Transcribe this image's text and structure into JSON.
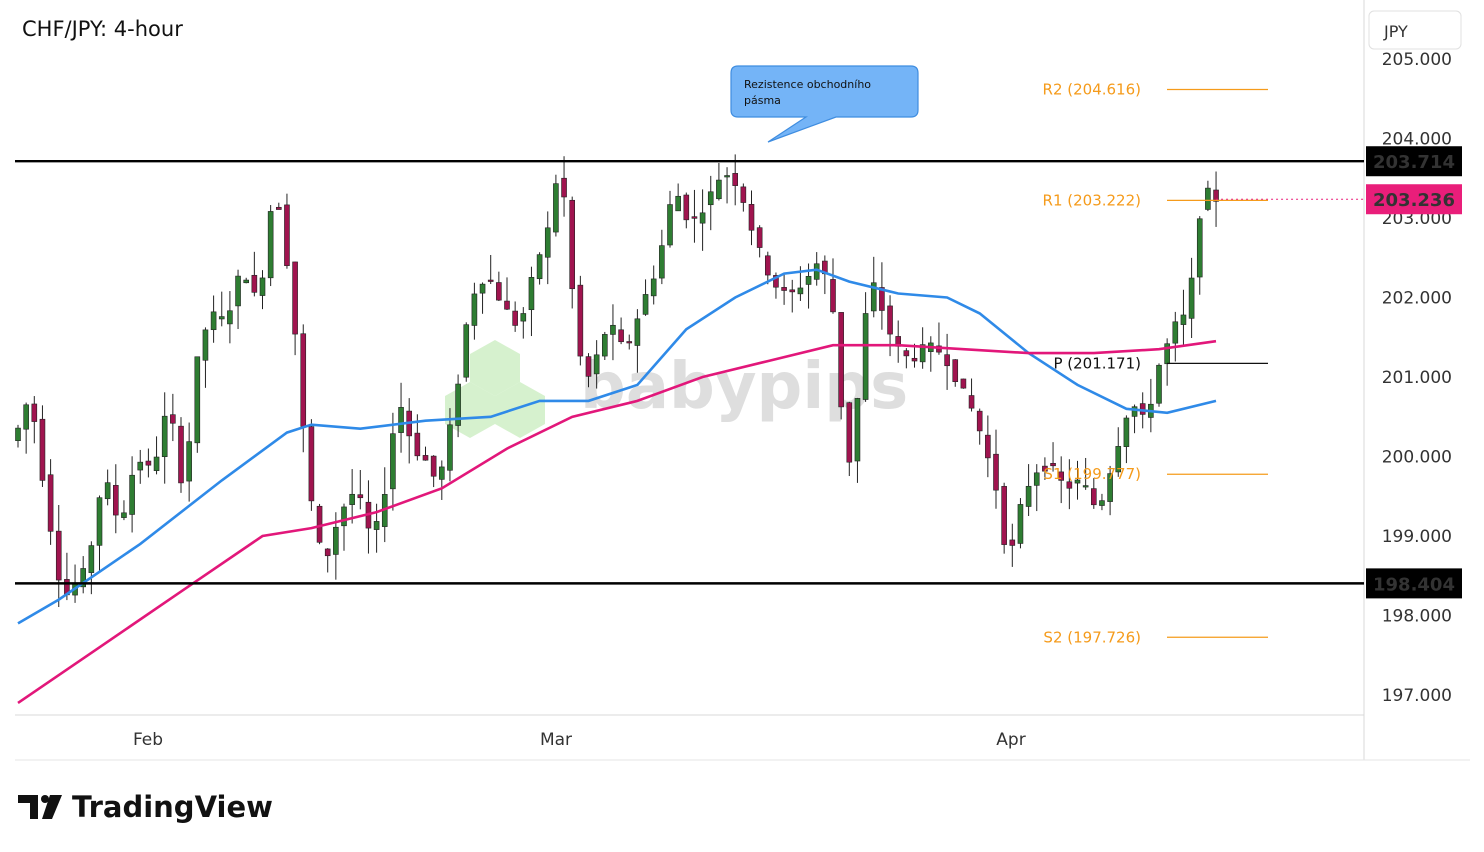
{
  "header": {
    "title": "CHF/JPY: 4-hour",
    "currency": "JPY"
  },
  "branding": {
    "tradingview": "TradingView",
    "watermark": "babypips"
  },
  "chart_data": {
    "type": "candlestick",
    "title": "CHF/JPY: 4-hour",
    "ylim": [
      196.8,
      205.8
    ],
    "y_ticks": [
      "205.000",
      "204.000",
      "203.000",
      "202.000",
      "201.000",
      "200.000",
      "199.000",
      "198.000",
      "197.000"
    ],
    "x_ticks": [
      "Feb",
      "Mar",
      "Apr"
    ],
    "horizontal_lines": [
      {
        "label": "203.714",
        "value": 203.714,
        "color": "#000000"
      },
      {
        "label": "198.404",
        "value": 198.404,
        "color": "#000000"
      }
    ],
    "current_price": {
      "label": "203.236",
      "value": 203.236,
      "color": "#e91e7a"
    },
    "pivot_levels": [
      {
        "label": "R2 (204.616)",
        "value": 204.616,
        "color": "#f59b1b"
      },
      {
        "label": "R1 (203.222)",
        "value": 203.222,
        "color": "#f59b1b"
      },
      {
        "label": "P (201.171)",
        "value": 201.171,
        "color": "#111111"
      },
      {
        "label": "S1 (199.777)",
        "value": 199.777,
        "color": "#f59b1b"
      },
      {
        "label": "S2 (197.726)",
        "value": 197.726,
        "color": "#f59b1b"
      }
    ],
    "annotation": {
      "text_line1": "Rezistence obchodního",
      "text_line2": "pásma"
    },
    "price_path": [
      [
        0,
        200.2
      ],
      [
        2,
        200.8
      ],
      [
        4,
        199.4
      ],
      [
        6,
        198.2
      ],
      [
        9,
        198.6
      ],
      [
        11,
        199.8
      ],
      [
        13,
        199.1
      ],
      [
        15,
        200.0
      ],
      [
        17,
        199.8
      ],
      [
        19,
        200.7
      ],
      [
        21,
        199.4
      ],
      [
        22,
        201.0
      ],
      [
        24,
        201.8
      ],
      [
        26,
        201.7
      ],
      [
        28,
        202.4
      ],
      [
        30,
        201.9
      ],
      [
        32,
        203.5
      ],
      [
        34,
        202.1
      ],
      [
        35,
        201.0
      ],
      [
        36,
        199.7
      ],
      [
        38,
        198.6
      ],
      [
        40,
        199.3
      ],
      [
        42,
        199.6
      ],
      [
        44,
        198.9
      ],
      [
        46,
        199.8
      ],
      [
        47,
        200.8
      ],
      [
        49,
        200.1
      ],
      [
        51,
        199.9
      ],
      [
        52,
        199.6
      ],
      [
        54,
        200.6
      ],
      [
        56,
        202.0
      ],
      [
        58,
        202.3
      ],
      [
        60,
        201.9
      ],
      [
        62,
        201.6
      ],
      [
        64,
        202.4
      ],
      [
        66,
        203.0
      ],
      [
        67,
        203.9
      ],
      [
        68,
        202.6
      ],
      [
        69,
        201.6
      ],
      [
        70,
        200.9
      ],
      [
        71,
        201.1
      ],
      [
        73,
        201.7
      ],
      [
        75,
        201.3
      ],
      [
        77,
        201.9
      ],
      [
        79,
        202.4
      ],
      [
        81,
        203.4
      ],
      [
        83,
        202.9
      ],
      [
        85,
        203.2
      ],
      [
        87,
        203.6
      ],
      [
        89,
        203.4
      ],
      [
        91,
        202.7
      ],
      [
        93,
        202.2
      ],
      [
        95,
        202.0
      ],
      [
        97,
        202.2
      ],
      [
        99,
        202.5
      ],
      [
        101,
        201.6
      ],
      [
        102,
        199.7
      ],
      [
        103,
        200.2
      ],
      [
        105,
        202.3
      ],
      [
        106,
        202.0
      ],
      [
        108,
        201.4
      ],
      [
        110,
        201.2
      ],
      [
        112,
        201.4
      ],
      [
        114,
        201.3
      ],
      [
        116,
        200.9
      ],
      [
        118,
        200.5
      ],
      [
        120,
        199.8
      ],
      [
        121,
        199.4
      ],
      [
        122,
        198.5
      ],
      [
        123,
        199.2
      ],
      [
        125,
        199.8
      ],
      [
        127,
        199.9
      ],
      [
        129,
        199.6
      ],
      [
        131,
        199.7
      ],
      [
        133,
        199.3
      ],
      [
        135,
        200.0
      ],
      [
        137,
        200.7
      ],
      [
        139,
        200.4
      ],
      [
        140,
        201.0
      ],
      [
        141,
        201.3
      ],
      [
        142,
        201.5
      ],
      [
        143,
        201.8
      ],
      [
        144,
        201.7
      ],
      [
        145,
        202.7
      ],
      [
        146,
        203.4
      ],
      [
        147,
        203.236
      ]
    ],
    "series": [
      {
        "name": "",
        "color": "#2f8ae8",
        "points": [
          [
            0,
            197.9
          ],
          [
            5,
            198.2
          ],
          [
            15,
            198.9
          ],
          [
            25,
            199.7
          ],
          [
            33,
            200.3
          ],
          [
            36,
            200.4
          ],
          [
            42,
            200.35
          ],
          [
            50,
            200.45
          ],
          [
            58,
            200.5
          ],
          [
            64,
            200.7
          ],
          [
            70,
            200.7
          ],
          [
            76,
            200.9
          ],
          [
            82,
            201.6
          ],
          [
            88,
            202.0
          ],
          [
            94,
            202.3
          ],
          [
            98,
            202.35
          ],
          [
            102,
            202.2
          ],
          [
            108,
            202.05
          ],
          [
            114,
            202.0
          ],
          [
            118,
            201.8
          ],
          [
            124,
            201.3
          ],
          [
            130,
            200.9
          ],
          [
            136,
            200.6
          ],
          [
            141,
            200.55
          ],
          [
            147,
            200.7
          ]
        ]
      },
      {
        "name": "",
        "color": "#e2177a",
        "points": [
          [
            0,
            196.9
          ],
          [
            10,
            197.6
          ],
          [
            20,
            198.3
          ],
          [
            30,
            199.0
          ],
          [
            36,
            199.1
          ],
          [
            44,
            199.3
          ],
          [
            52,
            199.6
          ],
          [
            60,
            200.1
          ],
          [
            68,
            200.5
          ],
          [
            76,
            200.7
          ],
          [
            84,
            201.0
          ],
          [
            92,
            201.2
          ],
          [
            100,
            201.4
          ],
          [
            108,
            201.4
          ],
          [
            116,
            201.35
          ],
          [
            124,
            201.3
          ],
          [
            132,
            201.3
          ],
          [
            140,
            201.35
          ],
          [
            147,
            201.45
          ]
        ]
      }
    ]
  }
}
